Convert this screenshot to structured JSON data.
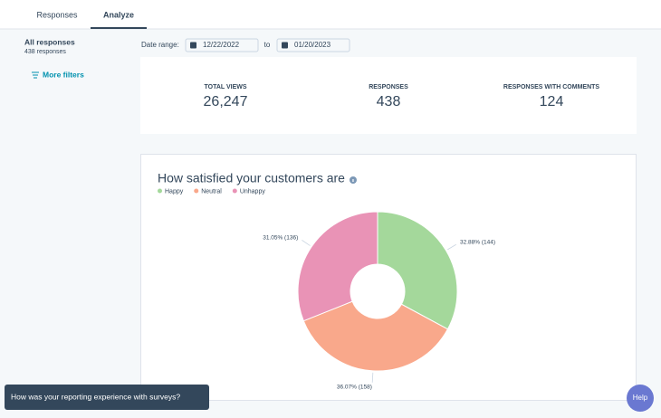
{
  "tabs": [
    "Responses",
    "Analyze"
  ],
  "sidebar": {
    "title": "All responses",
    "subtitle": "438 responses",
    "filters_link": "More filters"
  },
  "date_range": {
    "label": "Date range:",
    "start": "12/22/2022",
    "separator": "to",
    "end": "01/20/2023"
  },
  "stats": [
    {
      "label": "TOTAL VIEWS",
      "value": "26,247"
    },
    {
      "label": "RESPONSES",
      "value": "438"
    },
    {
      "label": "RESPONSES WITH COMMENTS",
      "value": "124"
    }
  ],
  "chart_data": {
    "type": "pie",
    "donut": true,
    "title": "How satisfied your customers are",
    "categories": [
      "Happy",
      "Neutral",
      "Unhappy"
    ],
    "values": [
      144,
      158,
      136
    ],
    "value_labels": [
      "32.88% (144)",
      "36.07% (158)",
      "31.05% (136)"
    ],
    "colors": [
      "#a4d89b",
      "#f9a88b",
      "#e993b6"
    ]
  },
  "feedback_prompt": "How was your reporting experience with surveys?",
  "help_button": "Help"
}
